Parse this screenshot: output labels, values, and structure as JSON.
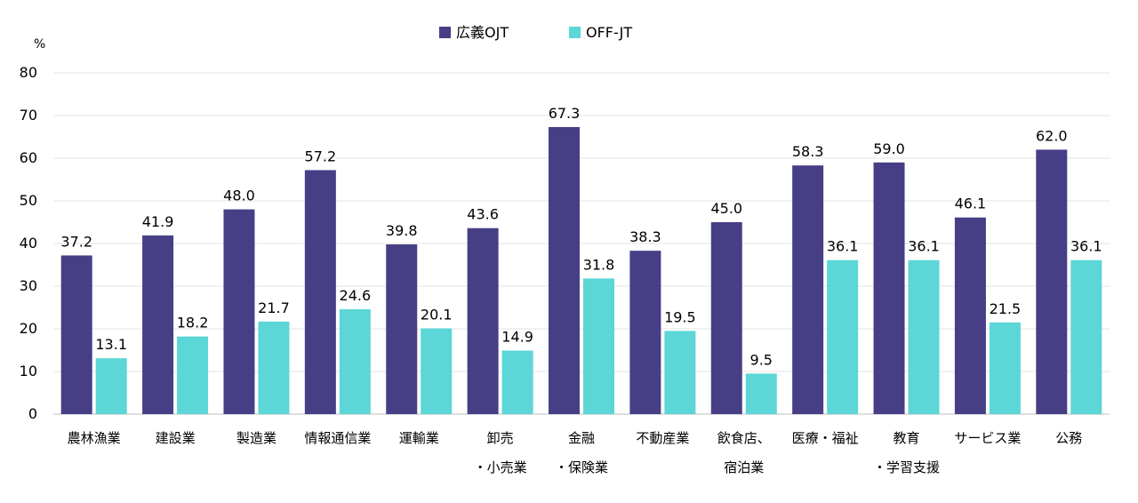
{
  "chart_data": {
    "type": "bar",
    "unit": "%",
    "ylim": [
      0,
      80
    ],
    "yticks": [
      0,
      10,
      20,
      30,
      40,
      50,
      60,
      70,
      80
    ],
    "grid": true,
    "legend_position": "top-center",
    "categories": [
      [
        "農林漁業"
      ],
      [
        "建設業"
      ],
      [
        "製造業"
      ],
      [
        "情報通信業"
      ],
      [
        "運輸業"
      ],
      [
        "卸売",
        "・小売業"
      ],
      [
        "金融",
        "・保険業"
      ],
      [
        "不動産業"
      ],
      [
        "飲食店、",
        "宿泊業"
      ],
      [
        "医療・福祉"
      ],
      [
        "教育",
        "・学習支援"
      ],
      [
        "サービス業"
      ],
      [
        "公務"
      ]
    ],
    "series": [
      {
        "name": "広義OJT",
        "color": "#463f86",
        "values": [
          37.2,
          41.9,
          48.0,
          57.2,
          39.8,
          43.6,
          67.3,
          38.3,
          45.0,
          58.3,
          59.0,
          46.1,
          62.0
        ]
      },
      {
        "name": "OFF-JT",
        "color": "#5cd6d6",
        "values": [
          13.1,
          18.2,
          21.7,
          24.6,
          20.1,
          14.9,
          31.8,
          19.5,
          9.5,
          36.1,
          36.1,
          21.5,
          36.1
        ]
      }
    ]
  }
}
